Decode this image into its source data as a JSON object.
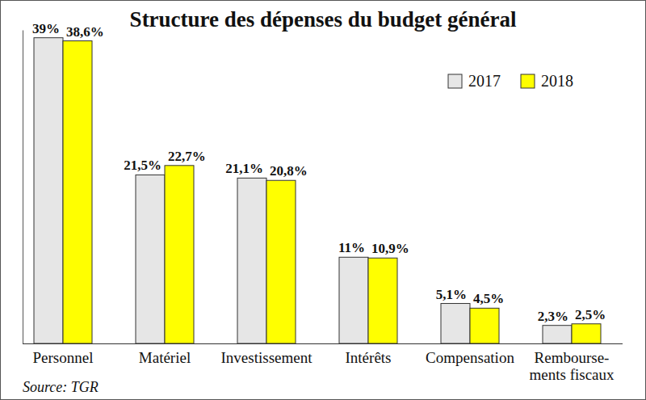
{
  "chart_data": {
    "type": "bar",
    "title": "Structure des dépenses du budget général",
    "categories": [
      "Personnel",
      "Matériel",
      "Investissement",
      "Intérêts",
      "Compensation",
      "Rembourse-\nments fiscaux"
    ],
    "series": [
      {
        "name": "2017",
        "color": "#e6e6e6",
        "values": [
          39,
          21.5,
          21.1,
          11,
          5.1,
          2.3
        ],
        "value_labels": [
          "39%",
          "21,5%",
          "21,1%",
          "11%",
          "5,1%",
          "2,3%"
        ]
      },
      {
        "name": "2018",
        "color": "#ffff00",
        "values": [
          38.6,
          22.7,
          20.8,
          10.9,
          4.5,
          2.5
        ],
        "value_labels": [
          "38,6%",
          "22,7%",
          "20,8%",
          "10,9%",
          "4,5%",
          "2,5%"
        ]
      }
    ],
    "ylim": [
      0,
      40
    ],
    "tick_labels": "x",
    "data_labels": true,
    "legend": "top-right",
    "source": "Source: TGR"
  }
}
